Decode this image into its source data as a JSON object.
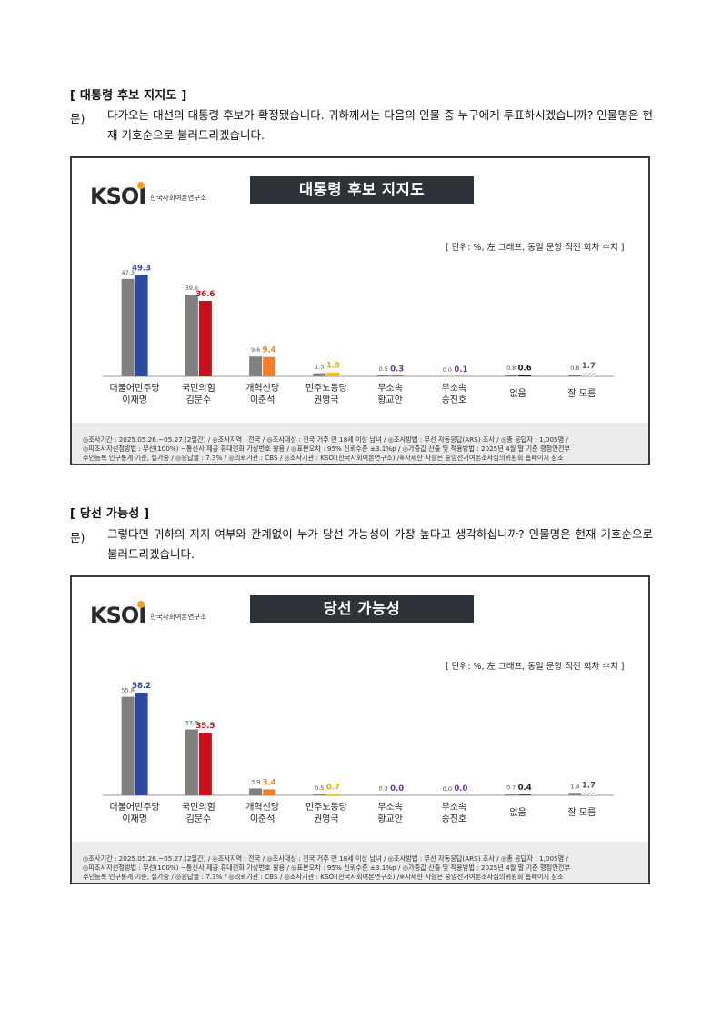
{
  "section1": {
    "title": "[ 대통령 후보 지지도 ]",
    "q_label": "문)",
    "q_text": "다가오는 대선의 대통령 후보가 확정됐습니다. 귀하께서는 다음의 인물 중 누구에게 투표하시겠습니까? 인물명은 현재 기호순으로 불러드리겠습니다."
  },
  "section2": {
    "title": "[ 당선 가능성 ]",
    "q_label": "문)",
    "q_text": "그렇다면 귀하의 지지 여부와 관계없이 누가 당선 가능성이 가장 높다고 생각하십니까? 인물명은 현재 기호순으로 불러드리겠습니다."
  },
  "logo": {
    "word": "KSOI",
    "sub": "한국사회여론연구소",
    "accent": "#f0a020"
  },
  "unit_note": "[ 단위: %, 左 그래프, 동일 문항 직전 회차 수치 ]",
  "footnote": {
    "line1": "◎조사기간 : 2025.05.26.~05.27.(2일간) / ◎조사지역 : 전국 / ◎조사대상 : 전국 거주 만 18세 이상 남녀 / ◎조사방법 : 무선 자동응답(ARS) 조사 / ◎총 응답자 : 1,005명 /",
    "line2": "◎피조사자선정방법 : 무선(100%) ~통신사 제공 휴대전화 가상번호 활용 / ◎표본오차 : 95% 신뢰수준 ±3.1%p / ◎가중값 산출 및 적용방법 : 2025년 4월 말 기준 행정안전부",
    "line3": "주민등록 인구통계 기준, 셀가중 / ◎응답율 : 7.3% / ◎의뢰기관 : CBS / ◎조사기관 : KSOI(한국사회여론연구소) /※자세한 사항은 중앙선거여론조사심의위원회 홈페이지 참조"
  },
  "colors": {
    "previous": "#808080",
    "parties": [
      "#2e4a9e",
      "#c8101a",
      "#f07f2a",
      "#f2c219",
      "#7030a0",
      "#7030a0",
      "#1a1a1a",
      "#9a9a9a"
    ],
    "label_colors": [
      "#2e4a9e",
      "#c8101a",
      "#f07f2a",
      "#e0b000",
      "#7030a0",
      "#7030a0",
      "#1a1a1a",
      "#555555"
    ]
  },
  "chart_data": [
    {
      "type": "bar",
      "title": "대통령 후보 지지도",
      "categories": [
        [
          "더불어민주당",
          "이재명"
        ],
        [
          "국민의힘",
          "김문수"
        ],
        [
          "개혁신당",
          "이준석"
        ],
        [
          "민주노동당",
          "권영국"
        ],
        [
          "무소속",
          "황교안"
        ],
        [
          "무소속",
          "송진호"
        ],
        [
          "없음"
        ],
        [
          "잘 모름"
        ]
      ],
      "series": [
        {
          "values": [
            47.3,
            39.6,
            9.6,
            1.5,
            0.5,
            0.0,
            0.8,
            0.8
          ]
        },
        {
          "values": [
            49.3,
            36.6,
            9.4,
            1.9,
            0.3,
            0.1,
            0.6,
            1.7
          ]
        }
      ],
      "ylim": [
        0,
        60
      ],
      "hatched_last": true
    },
    {
      "type": "bar",
      "title": "당선 가능성",
      "categories": [
        [
          "더불어민주당",
          "이재명"
        ],
        [
          "국민의힘",
          "김문수"
        ],
        [
          "개혁신당",
          "이준석"
        ],
        [
          "민주노동당",
          "권영국"
        ],
        [
          "무소속",
          "황교안"
        ],
        [
          "무소속",
          "송진호"
        ],
        [
          "없음"
        ],
        [
          "잘 모름"
        ]
      ],
      "series": [
        {
          "values": [
            55.8,
            37.3,
            3.9,
            0.5,
            0.3,
            0.0,
            0.7,
            1.4
          ]
        },
        {
          "values": [
            58.2,
            35.5,
            3.4,
            0.7,
            0.0,
            0.0,
            0.4,
            1.7
          ]
        }
      ],
      "ylim": [
        0,
        70
      ],
      "hatched_last": true
    }
  ]
}
